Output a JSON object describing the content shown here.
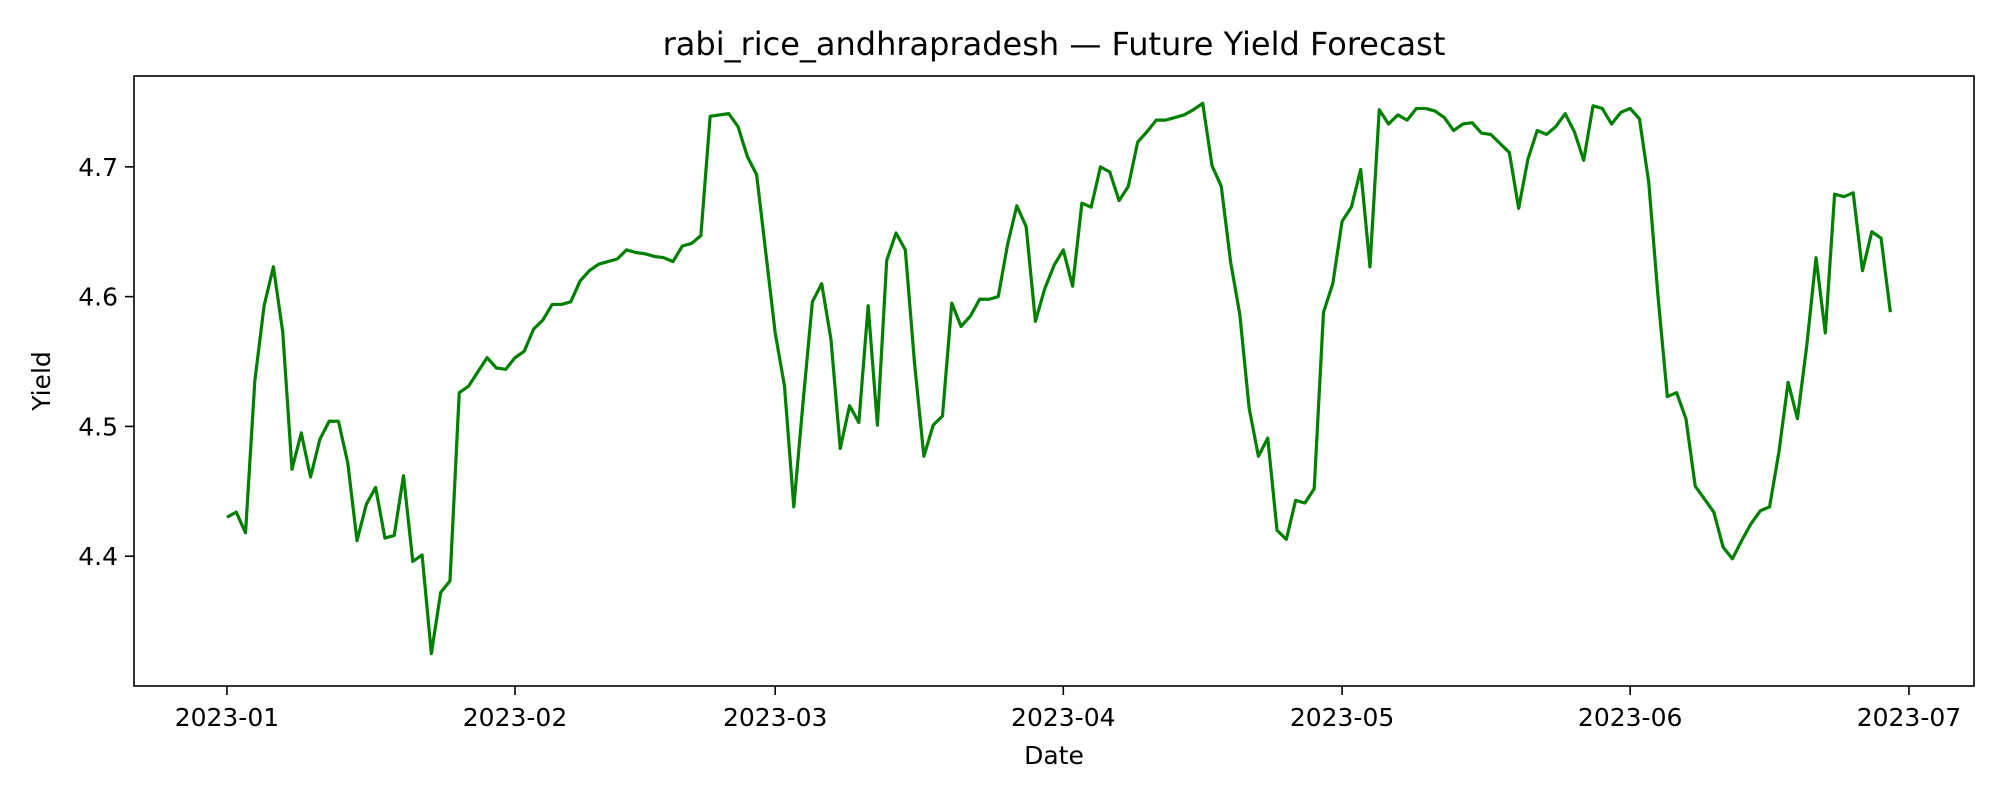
{
  "chart_data": {
    "type": "line",
    "title": "rabi_rice_andhrapradesh — Future Yield Forecast",
    "xlabel": "Date",
    "ylabel": "Yield",
    "line_color": "#008000",
    "grid": false,
    "legend": "none",
    "xlim": [
      "2022-12-22",
      "2023-07-08"
    ],
    "ylim": [
      4.3,
      4.77
    ],
    "x_ticks": [
      "2023-01",
      "2023-02",
      "2023-03",
      "2023-04",
      "2023-05",
      "2023-06",
      "2023-07"
    ],
    "y_ticks": [
      "4.4",
      "4.5",
      "4.6",
      "4.7"
    ],
    "series": [
      {
        "start": "2023-01-01",
        "values": [
          4.43,
          4.434,
          4.418,
          4.535,
          4.593,
          4.623,
          4.573,
          4.467,
          4.495,
          4.461,
          4.49,
          4.504,
          4.504,
          4.472,
          4.412,
          4.44,
          4.453,
          4.414,
          4.416,
          4.462,
          4.396,
          4.401,
          4.325,
          4.372,
          4.381,
          4.526,
          4.531,
          4.542,
          4.553,
          4.545,
          4.544,
          4.553,
          4.558,
          4.575,
          4.582,
          4.594,
          4.594,
          4.596,
          4.612,
          4.62,
          4.625,
          4.627,
          4.629,
          4.636,
          4.634,
          4.633,
          4.631,
          4.63,
          4.627,
          4.639,
          4.641,
          4.647,
          4.739,
          4.74,
          4.741,
          4.731,
          4.708,
          4.694,
          4.633,
          4.572,
          4.531,
          4.438,
          4.519,
          4.596,
          4.61,
          4.567,
          4.483,
          4.516,
          4.503,
          4.593,
          4.501,
          4.628,
          4.649,
          4.636,
          4.548,
          4.477,
          4.501,
          4.508,
          4.595,
          4.577,
          4.585,
          4.598,
          4.598,
          4.6,
          4.64,
          4.67,
          4.654,
          4.581,
          4.606,
          4.624,
          4.636,
          4.608,
          4.672,
          4.669,
          4.7,
          4.696,
          4.674,
          4.685,
          4.719,
          4.727,
          4.736,
          4.736,
          4.738,
          4.74,
          4.744,
          4.749,
          4.701,
          4.685,
          4.627,
          4.586,
          4.514,
          4.477,
          4.491,
          4.42,
          4.413,
          4.443,
          4.441,
          4.452,
          4.588,
          4.61,
          4.658,
          4.669,
          4.698,
          4.623,
          4.744,
          4.733,
          4.74,
          4.736,
          4.745,
          4.745,
          4.743,
          4.738,
          4.728,
          4.733,
          4.734,
          4.726,
          4.725,
          4.718,
          4.711,
          4.668,
          4.706,
          4.728,
          4.725,
          4.731,
          4.741,
          4.727,
          4.705,
          4.747,
          4.745,
          4.733,
          4.742,
          4.745,
          4.737,
          4.688,
          4.6,
          4.523,
          4.526,
          4.506,
          4.454,
          4.444,
          4.434,
          4.407,
          4.398,
          4.412,
          4.425,
          4.435,
          4.438,
          4.48,
          4.534,
          4.506,
          4.562,
          4.63,
          4.572,
          4.679,
          4.677,
          4.68,
          4.62,
          4.65,
          4.645,
          4.588
        ]
      }
    ]
  }
}
